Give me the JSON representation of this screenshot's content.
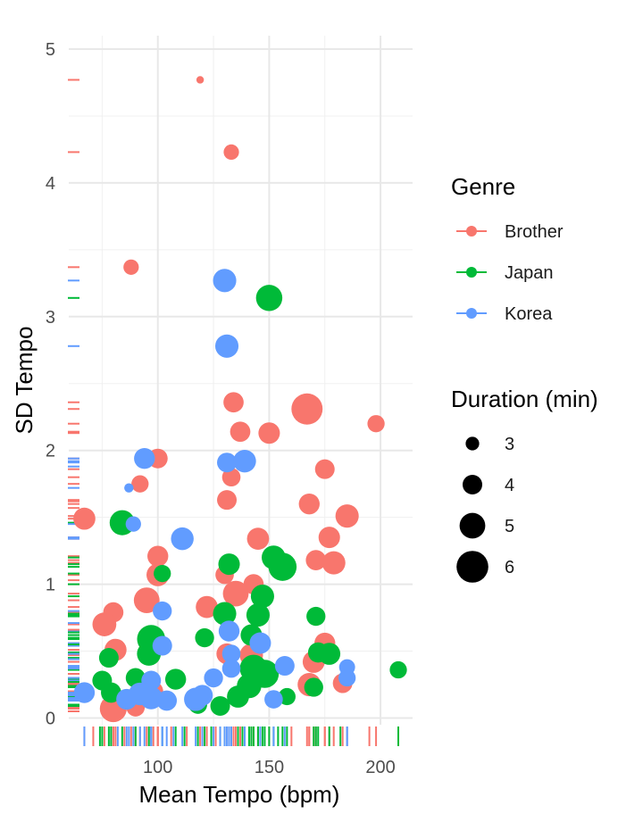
{
  "chart_data": {
    "type": "scatter",
    "xlabel": "Mean Tempo (bpm)",
    "ylabel": "SD Tempo",
    "xlim": [
      60,
      210
    ],
    "ylim": [
      -0.05,
      5.1
    ],
    "x_ticks": [
      100,
      150,
      200
    ],
    "y_ticks": [
      0,
      1,
      2,
      3,
      4,
      5
    ],
    "grid": true,
    "rug": true,
    "legend_position": "right",
    "color_legend": {
      "title": "Genre",
      "entries": [
        {
          "name": "Brother",
          "color": "#F8766D"
        },
        {
          "name": "Japan",
          "color": "#00BA38"
        },
        {
          "name": "Korea",
          "color": "#619CFF"
        }
      ]
    },
    "size_legend": {
      "title": "Duration (min)",
      "entries": [
        3,
        4,
        5,
        6
      ]
    },
    "series": [
      {
        "name": "Brother",
        "color": "#F8766D",
        "points": [
          {
            "x": 119,
            "y": 4.77,
            "duration": 2.0
          },
          {
            "x": 133,
            "y": 4.23,
            "duration": 3.3
          },
          {
            "x": 88,
            "y": 3.37,
            "duration": 3.3
          },
          {
            "x": 134,
            "y": 2.36,
            "duration": 4.1
          },
          {
            "x": 167,
            "y": 2.31,
            "duration": 5.9
          },
          {
            "x": 198,
            "y": 2.2,
            "duration": 3.6
          },
          {
            "x": 137,
            "y": 2.14,
            "duration": 4.1
          },
          {
            "x": 150,
            "y": 2.13,
            "duration": 4.3
          },
          {
            "x": 100,
            "y": 1.94,
            "duration": 4.0
          },
          {
            "x": 92,
            "y": 1.75,
            "duration": 3.6
          },
          {
            "x": 133,
            "y": 1.8,
            "duration": 3.8
          },
          {
            "x": 175,
            "y": 1.86,
            "duration": 4.0
          },
          {
            "x": 131,
            "y": 1.63,
            "duration": 4.0
          },
          {
            "x": 168,
            "y": 1.6,
            "duration": 4.2
          },
          {
            "x": 185,
            "y": 1.51,
            "duration": 4.6
          },
          {
            "x": 67,
            "y": 1.49,
            "duration": 4.4
          },
          {
            "x": 145,
            "y": 1.34,
            "duration": 4.4
          },
          {
            "x": 177,
            "y": 1.35,
            "duration": 4.3
          },
          {
            "x": 100,
            "y": 1.21,
            "duration": 4.2
          },
          {
            "x": 171,
            "y": 1.18,
            "duration": 4.1
          },
          {
            "x": 179,
            "y": 1.16,
            "duration": 4.6
          },
          {
            "x": 100,
            "y": 1.07,
            "duration": 4.5
          },
          {
            "x": 130,
            "y": 1.07,
            "duration": 3.8
          },
          {
            "x": 143,
            "y": 1.0,
            "duration": 4.1
          },
          {
            "x": 135,
            "y": 0.93,
            "duration": 5.0
          },
          {
            "x": 95,
            "y": 0.88,
            "duration": 5.0
          },
          {
            "x": 122,
            "y": 0.83,
            "duration": 4.4
          },
          {
            "x": 80,
            "y": 0.79,
            "duration": 4.1
          },
          {
            "x": 76,
            "y": 0.7,
            "duration": 4.7
          },
          {
            "x": 81,
            "y": 0.51,
            "duration": 4.4
          },
          {
            "x": 131,
            "y": 0.48,
            "duration": 4.2
          },
          {
            "x": 142,
            "y": 0.47,
            "duration": 4.6
          },
          {
            "x": 170,
            "y": 0.42,
            "duration": 4.4
          },
          {
            "x": 175,
            "y": 0.56,
            "duration": 4.2
          },
          {
            "x": 168,
            "y": 0.25,
            "duration": 4.6
          },
          {
            "x": 183,
            "y": 0.26,
            "duration": 4.0
          },
          {
            "x": 80,
            "y": 0.07,
            "duration": 5.2
          },
          {
            "x": 90,
            "y": 0.08,
            "duration": 3.8
          },
          {
            "x": 98,
            "y": 0.2,
            "duration": 4.0
          }
        ]
      },
      {
        "name": "Japan",
        "color": "#00BA38",
        "points": [
          {
            "x": 150,
            "y": 3.14,
            "duration": 5.1
          },
          {
            "x": 84,
            "y": 1.46,
            "duration": 4.9
          },
          {
            "x": 132,
            "y": 1.15,
            "duration": 4.3
          },
          {
            "x": 152,
            "y": 1.2,
            "duration": 4.7
          },
          {
            "x": 156,
            "y": 1.13,
            "duration": 5.4
          },
          {
            "x": 102,
            "y": 1.08,
            "duration": 3.6
          },
          {
            "x": 147,
            "y": 0.91,
            "duration": 4.6
          },
          {
            "x": 130,
            "y": 0.78,
            "duration": 4.6
          },
          {
            "x": 145,
            "y": 0.77,
            "duration": 4.6
          },
          {
            "x": 171,
            "y": 0.76,
            "duration": 3.9
          },
          {
            "x": 97,
            "y": 0.59,
            "duration": 5.4
          },
          {
            "x": 142,
            "y": 0.62,
            "duration": 4.3
          },
          {
            "x": 121,
            "y": 0.6,
            "duration": 3.9
          },
          {
            "x": 96,
            "y": 0.48,
            "duration": 4.7
          },
          {
            "x": 78,
            "y": 0.45,
            "duration": 4.0
          },
          {
            "x": 172,
            "y": 0.49,
            "duration": 4.1
          },
          {
            "x": 177,
            "y": 0.48,
            "duration": 4.4
          },
          {
            "x": 143,
            "y": 0.37,
            "duration": 5.3
          },
          {
            "x": 148,
            "y": 0.33,
            "duration": 5.4
          },
          {
            "x": 90,
            "y": 0.3,
            "duration": 4.0
          },
          {
            "x": 108,
            "y": 0.29,
            "duration": 4.2
          },
          {
            "x": 75,
            "y": 0.28,
            "duration": 4.0
          },
          {
            "x": 141,
            "y": 0.24,
            "duration": 4.8
          },
          {
            "x": 136,
            "y": 0.16,
            "duration": 4.4
          },
          {
            "x": 158,
            "y": 0.16,
            "duration": 3.6
          },
          {
            "x": 170,
            "y": 0.23,
            "duration": 3.9
          },
          {
            "x": 208,
            "y": 0.36,
            "duration": 3.6
          },
          {
            "x": 79,
            "y": 0.19,
            "duration": 4.1
          },
          {
            "x": 118,
            "y": 0.1,
            "duration": 3.8
          },
          {
            "x": 128,
            "y": 0.09,
            "duration": 4.0
          }
        ]
      },
      {
        "name": "Korea",
        "color": "#619CFF",
        "points": [
          {
            "x": 130,
            "y": 3.27,
            "duration": 4.6
          },
          {
            "x": 131,
            "y": 2.78,
            "duration": 4.6
          },
          {
            "x": 94,
            "y": 1.94,
            "duration": 4.2
          },
          {
            "x": 131,
            "y": 1.91,
            "duration": 4.0
          },
          {
            "x": 139,
            "y": 1.92,
            "duration": 4.5
          },
          {
            "x": 87,
            "y": 1.72,
            "duration": 2.3
          },
          {
            "x": 89,
            "y": 1.45,
            "duration": 3.3
          },
          {
            "x": 111,
            "y": 1.34,
            "duration": 4.5
          },
          {
            "x": 102,
            "y": 0.8,
            "duration": 3.9
          },
          {
            "x": 132,
            "y": 0.65,
            "duration": 4.2
          },
          {
            "x": 102,
            "y": 0.54,
            "duration": 4.0
          },
          {
            "x": 146,
            "y": 0.56,
            "duration": 4.3
          },
          {
            "x": 133,
            "y": 0.48,
            "duration": 3.8
          },
          {
            "x": 157,
            "y": 0.39,
            "duration": 4.0
          },
          {
            "x": 185,
            "y": 0.38,
            "duration": 3.4
          },
          {
            "x": 133,
            "y": 0.37,
            "duration": 3.8
          },
          {
            "x": 125,
            "y": 0.3,
            "duration": 3.9
          },
          {
            "x": 185,
            "y": 0.3,
            "duration": 3.6
          },
          {
            "x": 97,
            "y": 0.28,
            "duration": 4.0
          },
          {
            "x": 67,
            "y": 0.19,
            "duration": 4.2
          },
          {
            "x": 92,
            "y": 0.18,
            "duration": 4.5
          },
          {
            "x": 97,
            "y": 0.15,
            "duration": 4.5
          },
          {
            "x": 86,
            "y": 0.14,
            "duration": 4.2
          },
          {
            "x": 120,
            "y": 0.17,
            "duration": 4.2
          },
          {
            "x": 117,
            "y": 0.14,
            "duration": 4.6
          },
          {
            "x": 104,
            "y": 0.13,
            "duration": 4.1
          },
          {
            "x": 152,
            "y": 0.14,
            "duration": 3.8
          }
        ]
      }
    ],
    "rug_extra": {
      "x": [
        {
          "x": 71,
          "genre": "Brother"
        },
        {
          "x": 85,
          "genre": "Brother"
        },
        {
          "x": 106,
          "genre": "Brother"
        },
        {
          "x": 113,
          "genre": "Brother"
        },
        {
          "x": 126,
          "genre": "Brother"
        },
        {
          "x": 160,
          "genre": "Brother"
        },
        {
          "x": 195,
          "genre": "Brother"
        },
        {
          "x": 74,
          "genre": "Japan"
        },
        {
          "x": 112,
          "genre": "Japan"
        },
        {
          "x": 124,
          "genre": "Japan"
        },
        {
          "x": 138,
          "genre": "Japan"
        },
        {
          "x": 154,
          "genre": "Japan"
        },
        {
          "x": 182,
          "genre": "Japan"
        },
        {
          "x": 82,
          "genre": "Korea"
        },
        {
          "x": 107,
          "genre": "Korea"
        },
        {
          "x": 128,
          "genre": "Korea"
        },
        {
          "x": 139,
          "genre": "Korea"
        }
      ],
      "y": [
        {
          "y": 0.05,
          "genre": "Brother"
        },
        {
          "y": 0.33,
          "genre": "Brother"
        },
        {
          "y": 0.66,
          "genre": "Brother"
        },
        {
          "y": 1.57,
          "genre": "Brother"
        },
        {
          "y": 1.62,
          "genre": "Brother"
        },
        {
          "y": 1.03,
          "genre": "Brother"
        },
        {
          "y": 0.27,
          "genre": "Japan"
        },
        {
          "y": 0.55,
          "genre": "Japan"
        },
        {
          "y": 0.64,
          "genre": "Japan"
        },
        {
          "y": 1.0,
          "genre": "Japan"
        },
        {
          "y": 0.44,
          "genre": "Korea"
        },
        {
          "y": 1.35,
          "genre": "Korea"
        },
        {
          "y": 1.88,
          "genre": "Korea"
        },
        {
          "y": 0.71,
          "genre": "Korea"
        }
      ]
    }
  }
}
